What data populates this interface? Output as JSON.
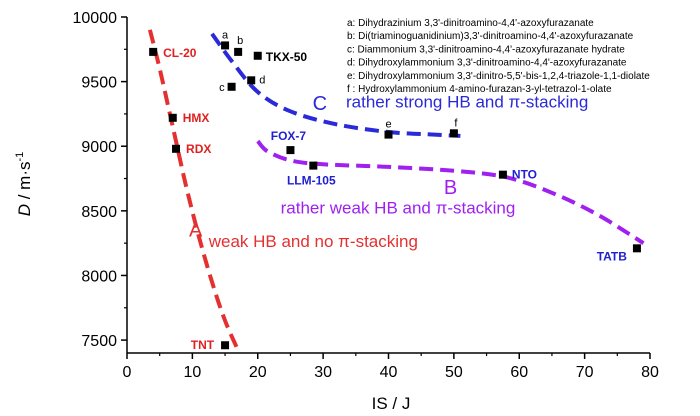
{
  "chart_data": {
    "type": "scatter",
    "xlabel": "IS / J",
    "ylabel_parts": {
      "var": "D",
      "unit_pre": " / m·s",
      "unit_sup": "-1"
    },
    "xlim": [
      0,
      80
    ],
    "ylim": [
      7400,
      10000
    ],
    "xticks": [
      0,
      10,
      20,
      30,
      40,
      50,
      60,
      70,
      80
    ],
    "yticks": [
      7500,
      8000,
      8500,
      9000,
      9500,
      10000
    ],
    "points": [
      {
        "name": "CL-20",
        "label": "CL-20",
        "x": 4,
        "y": 9730,
        "color": "#e02020"
      },
      {
        "name": "HMX",
        "label": "HMX",
        "x": 7,
        "y": 9220,
        "color": "#e02020"
      },
      {
        "name": "RDX",
        "label": "RDX",
        "x": 7.5,
        "y": 8980,
        "color": "#e02020"
      },
      {
        "name": "TNT",
        "label": "TNT",
        "x": 15,
        "y": 7460,
        "color": "#e02020"
      },
      {
        "name": "a",
        "label": "a",
        "x": 15,
        "y": 9780,
        "color": "#000000"
      },
      {
        "name": "b",
        "label": "b",
        "x": 17,
        "y": 9730,
        "color": "#000000"
      },
      {
        "name": "TKX-50",
        "label": "TKX-50",
        "x": 20,
        "y": 9700,
        "color": "#000000"
      },
      {
        "name": "c",
        "label": "c",
        "x": 16,
        "y": 9460,
        "color": "#000000"
      },
      {
        "name": "d",
        "label": "d",
        "x": 19,
        "y": 9510,
        "color": "#000000"
      },
      {
        "name": "e",
        "label": "e",
        "x": 40,
        "y": 9090,
        "color": "#000000"
      },
      {
        "name": "f",
        "label": "f",
        "x": 50,
        "y": 9100,
        "color": "#000000"
      },
      {
        "name": "FOX-7",
        "label": "FOX-7",
        "x": 25,
        "y": 8970,
        "color": "#2020d0"
      },
      {
        "name": "LLM-105",
        "label": "LLM-105",
        "x": 28.5,
        "y": 8850,
        "color": "#2020d0"
      },
      {
        "name": "NTO",
        "label": "NTO",
        "x": 57.5,
        "y": 8780,
        "color": "#2020d0"
      },
      {
        "name": "TATB",
        "label": "TATB",
        "x": 78,
        "y": 8210,
        "color": "#2020d0"
      }
    ],
    "curves": [
      {
        "name": "A",
        "color": "#e53030",
        "x": [
          3.5,
          5,
          7,
          9,
          11,
          13,
          15,
          17
        ],
        "y": [
          9900,
          9600,
          9150,
          8700,
          8300,
          7950,
          7650,
          7420
        ]
      },
      {
        "name": "C",
        "color": "#2a2ad8",
        "x": [
          13,
          16,
          20,
          25,
          32,
          40,
          47,
          51
        ],
        "y": [
          9870,
          9660,
          9420,
          9270,
          9170,
          9110,
          9090,
          9080
        ]
      },
      {
        "name": "B",
        "color": "#a020f0",
        "x": [
          20,
          21.5,
          25,
          30,
          40,
          50,
          58,
          65,
          72,
          79
        ],
        "y": [
          9040,
          8960,
          8890,
          8860,
          8840,
          8810,
          8760,
          8640,
          8470,
          8250
        ]
      }
    ],
    "curve_letters": [
      {
        "text": "A",
        "color": "#e53030",
        "x": 10.5,
        "y": 8300
      },
      {
        "text": "B",
        "color": "#a020f0",
        "x": 49.5,
        "y": 8630
      },
      {
        "text": "C",
        "color": "#2a2ad8",
        "x": 29.5,
        "y": 9280
      }
    ],
    "annotations": [
      {
        "text": "rather strong HB and π-stacking",
        "color": "#2a2ad8",
        "x": 33.5,
        "y": 9300
      },
      {
        "text": "rather weak HB and π-stacking",
        "color": "#a020f0",
        "x": 23.5,
        "y": 8480
      },
      {
        "text": "weak HB and no π-stacking",
        "color": "#e53030",
        "x": 12.5,
        "y": 8220
      }
    ],
    "legend": [
      "a: Dihydrazinium 3,3'-dinitroamino-4,4'-azoxyfurazanate",
      "b: Di(triaminoguanidinium)3,3'-dinitroamino-4,4'-azoxyfurazanate",
      "c: Diammonium 3,3'-dinitroamino-4,4'-azoxyfurazanate hydrate",
      "d: Dihydroxylammonium 3,3'-dinitroamino-4,4'-azoxyfurazanate",
      "e: Dihydroxylammonium 3,3'-dinitro-5,5'-bis-1,2,4-triazole-1,1-diolate",
      "f : Hydroxylammonium 4-amino-furazan-3-yl-tetrazol-1-olate"
    ]
  }
}
